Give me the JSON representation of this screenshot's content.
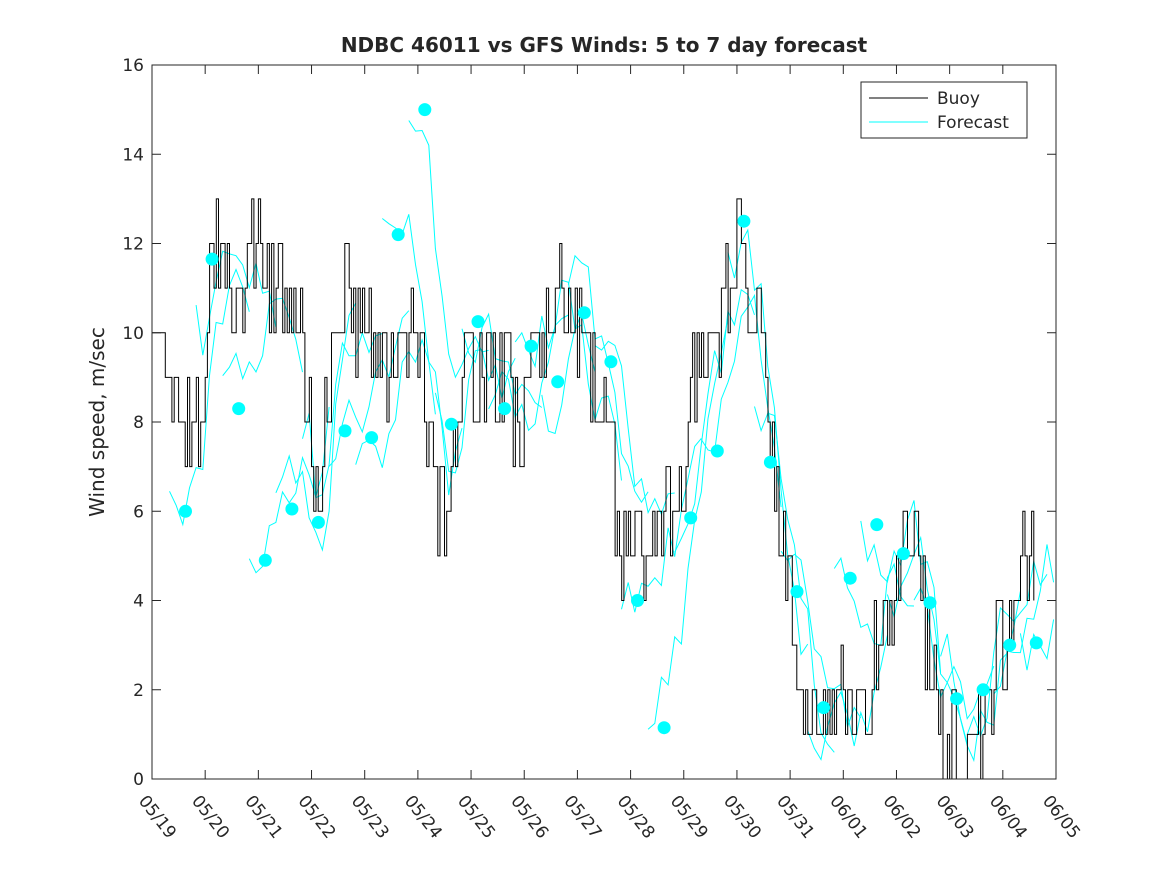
{
  "chart_data": {
    "type": "line",
    "title": "NDBC 46011 vs GFS Winds: 5 to 7 day forecast",
    "xlabel": "",
    "ylabel": "Wind speed, m/sec",
    "xlim": [
      0,
      17
    ],
    "ylim": [
      0,
      16
    ],
    "x_unit": "days from 05/19",
    "xticks": [
      {
        "value": 0,
        "label": "05/19"
      },
      {
        "value": 1,
        "label": "05/20"
      },
      {
        "value": 2,
        "label": "05/21"
      },
      {
        "value": 3,
        "label": "05/22"
      },
      {
        "value": 4,
        "label": "05/23"
      },
      {
        "value": 5,
        "label": "05/24"
      },
      {
        "value": 6,
        "label": "05/25"
      },
      {
        "value": 7,
        "label": "05/26"
      },
      {
        "value": 8,
        "label": "05/27"
      },
      {
        "value": 9,
        "label": "05/28"
      },
      {
        "value": 10,
        "label": "05/29"
      },
      {
        "value": 11,
        "label": "05/30"
      },
      {
        "value": 12,
        "label": "05/31"
      },
      {
        "value": 13,
        "label": "06/01"
      },
      {
        "value": 14,
        "label": "06/02"
      },
      {
        "value": 15,
        "label": "06/03"
      },
      {
        "value": 16,
        "label": "06/04"
      },
      {
        "value": 17,
        "label": "06/05"
      }
    ],
    "yticks": [
      0,
      2,
      4,
      6,
      8,
      10,
      12,
      14,
      16
    ],
    "grid": false,
    "legend": {
      "position": "top-right",
      "entries": [
        "Buoy",
        "Forecast"
      ]
    },
    "colors": {
      "buoy": "#000000",
      "forecast": "#00ffff"
    },
    "buoy_keypoints": {
      "name": "Buoy",
      "x": [
        0,
        0.3,
        0.5,
        0.9,
        1.1,
        1.2,
        1.4,
        1.7,
        2.0,
        2.3,
        2.6,
        2.9,
        3.1,
        3.3,
        3.6,
        3.9,
        4.1,
        4.4,
        4.7,
        5.0,
        5.3,
        5.5,
        5.8,
        6.0,
        6.3,
        6.6,
        6.9,
        7.1,
        7.4,
        7.7,
        8.0,
        8.3,
        8.6,
        8.9,
        9.1,
        9.3,
        9.6,
        9.9,
        10.2,
        10.5,
        10.8,
        11.1,
        11.4,
        11.7,
        12.0,
        12.3,
        12.6,
        12.9,
        13.2,
        13.5,
        13.8,
        14.1,
        14.4,
        14.7,
        15.0,
        15.3,
        15.6,
        15.9,
        16.2,
        16.5
      ],
      "y": [
        10,
        9,
        8,
        8,
        11,
        12,
        11,
        11,
        12,
        11,
        10,
        9,
        6,
        9,
        11,
        10,
        10,
        9,
        10,
        10,
        7,
        5,
        9,
        9,
        9,
        9,
        8,
        9,
        10,
        11,
        10,
        9,
        7,
        5,
        5,
        5,
        6,
        6,
        9,
        10,
        11,
        12,
        10,
        7,
        4,
        2,
        1,
        2,
        1,
        2,
        4,
        5,
        5,
        2,
        1,
        0,
        1,
        3,
        4,
        5
      ]
    },
    "forecast_markers": {
      "name": "Forecast",
      "x": [
        0.63,
        1.13,
        1.63,
        2.13,
        2.63,
        3.13,
        3.63,
        4.13,
        4.63,
        5.13,
        5.63,
        6.13,
        6.63,
        7.13,
        7.63,
        8.13,
        8.63,
        9.13,
        9.63,
        10.13,
        10.63,
        11.13,
        11.63,
        12.13,
        12.63,
        13.13,
        13.63,
        14.13,
        14.63,
        15.13,
        15.63,
        16.13,
        16.63
      ],
      "y": [
        6.0,
        11.65,
        8.3,
        4.9,
        6.05,
        5.75,
        7.8,
        7.65,
        12.2,
        15.0,
        7.95,
        10.25,
        8.3,
        9.7,
        8.9,
        10.45,
        9.35,
        4.0,
        1.15,
        5.85,
        7.35,
        12.5,
        7.1,
        4.2,
        1.6,
        4.5,
        5.7,
        5.05,
        3.95,
        1.8,
        2.0,
        3.0,
        3.05
      ]
    },
    "forecast_traces_count": 33
  }
}
